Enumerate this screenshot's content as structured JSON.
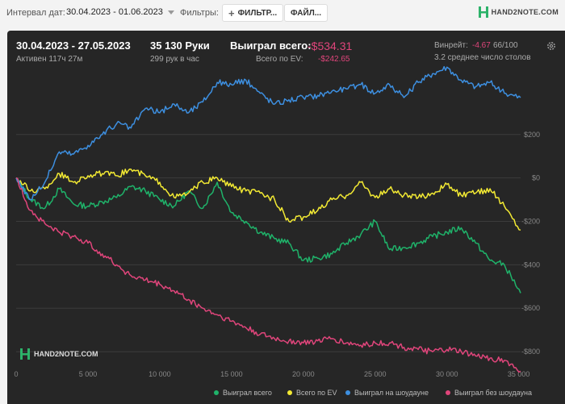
{
  "toolbar": {
    "date_label": "Интервал дат:",
    "date_value": "30.04.2023 - 01.06.2023",
    "filters_label": "Фильтры:",
    "filter_button": "ФИЛЬТР...",
    "file_button": "ФАЙЛ...",
    "brand": "HAND2NOTE.COM"
  },
  "summary": {
    "period": "30.04.2023 - 27.05.2023",
    "active": "Активен 117ч 27м",
    "hands": "35 130 Руки",
    "hands_rate": "299 рук в час",
    "won_label": "Выиграл всего:",
    "won_value": "-$534.31",
    "ev_label": "Всего по EV:",
    "ev_value": "-$242.65",
    "winrate_label": "Винрейт:",
    "winrate_value": "-4.67",
    "winrate_suffix": "66/100",
    "tables": "3.2 среднее число столов"
  },
  "watermark": "HAND2NOTE.COM",
  "colors": {
    "green": "#1fb36a",
    "yellow": "#f2e933",
    "blue": "#3d8fe0",
    "pink": "#e0457b"
  },
  "chart_data": {
    "type": "line",
    "xlim": [
      0,
      35130
    ],
    "ylim": [
      -900,
      500
    ],
    "x_ticks": [
      0,
      5000,
      10000,
      15000,
      20000,
      25000,
      30000,
      35000
    ],
    "x_tick_labels": [
      "0",
      "5 000",
      "10 000",
      "15 000",
      "20 000",
      "25 000",
      "30 000",
      "35 000"
    ],
    "y_ticks": [
      200,
      0,
      -200,
      -400,
      -600,
      -800
    ],
    "y_tick_labels": [
      "$200",
      "$0",
      "-$200",
      "-$400",
      "-$600",
      "-$800"
    ],
    "grid": true,
    "legend": "bottom-right",
    "x": [
      0,
      1000,
      2000,
      3000,
      4000,
      5000,
      6000,
      7000,
      8000,
      9000,
      10000,
      11000,
      12000,
      13000,
      14000,
      15000,
      16000,
      17000,
      18000,
      19000,
      20000,
      21000,
      22000,
      23000,
      24000,
      25000,
      26000,
      27000,
      28000,
      29000,
      30000,
      31000,
      32000,
      33000,
      34000,
      35130
    ],
    "series": [
      {
        "name": "Выиграл всего",
        "color": "#1fb36a",
        "values": [
          0,
          -100,
          -140,
          -50,
          -120,
          -130,
          -110,
          -90,
          -40,
          -60,
          -100,
          -130,
          -60,
          -140,
          -20,
          -160,
          -200,
          -250,
          -280,
          -300,
          -380,
          -370,
          -350,
          -300,
          -260,
          -200,
          -330,
          -320,
          -300,
          -270,
          -250,
          -230,
          -300,
          -380,
          -400,
          -530
        ]
      },
      {
        "name": "Всего по EV",
        "color": "#f2e933",
        "values": [
          0,
          -60,
          -50,
          20,
          -20,
          10,
          20,
          10,
          40,
          10,
          -20,
          -90,
          -70,
          -20,
          0,
          -40,
          -60,
          -70,
          -100,
          -200,
          -180,
          -150,
          -100,
          -80,
          -20,
          -90,
          -50,
          -80,
          -90,
          -70,
          -30,
          -80,
          -70,
          -50,
          -130,
          -240
        ]
      },
      {
        "name": "Выиграл на шоудауне",
        "color": "#3d8fe0",
        "values": [
          0,
          -100,
          -20,
          120,
          110,
          150,
          200,
          250,
          230,
          320,
          300,
          340,
          300,
          350,
          440,
          430,
          450,
          390,
          340,
          360,
          370,
          380,
          400,
          410,
          430,
          390,
          430,
          370,
          440,
          480,
          510,
          450,
          420,
          440,
          390,
          370
        ]
      },
      {
        "name": "Выиграл без шоудауна",
        "color": "#e0457b",
        "values": [
          0,
          -150,
          -210,
          -250,
          -270,
          -300,
          -350,
          -400,
          -450,
          -470,
          -490,
          -520,
          -560,
          -600,
          -630,
          -660,
          -690,
          -720,
          -740,
          -750,
          -760,
          -750,
          -740,
          -760,
          -770,
          -760,
          -760,
          -780,
          -790,
          -800,
          -790,
          -800,
          -820,
          -830,
          -840,
          -890
        ]
      }
    ]
  }
}
